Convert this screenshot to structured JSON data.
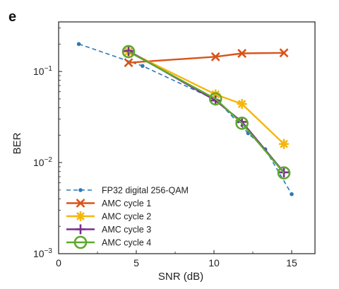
{
  "panel_label": "e",
  "chart_data": {
    "type": "line",
    "xlabel": "SNR (dB)",
    "ylabel": "BER",
    "xlim": [
      0,
      16.5
    ],
    "ylim": [
      0.001,
      0.35
    ],
    "yscale": "log",
    "x_ticks": [
      0,
      5,
      10,
      15
    ],
    "x_tick_labels": [
      "0",
      "5",
      "10",
      "15"
    ],
    "y_ticks": [
      0.001,
      0.01,
      0.1
    ],
    "y_tick_labels": [
      {
        "base": "10",
        "exp": "−3"
      },
      {
        "base": "10",
        "exp": "−2"
      },
      {
        "base": "10",
        "exp": "−1"
      }
    ],
    "grid": false,
    "legend_placement": "bottom-left",
    "series": [
      {
        "name": "FP32 digital 256-QAM",
        "color": "#2a7ab9",
        "line_style": "dashed",
        "marker": "dot",
        "x": [
          1.3,
          5.4,
          10.2,
          12.2,
          13.3,
          15.0
        ],
        "y": [
          0.2,
          0.115,
          0.048,
          0.021,
          0.014,
          0.0045
        ]
      },
      {
        "name": "AMC cycle 1",
        "color": "#d95319",
        "line_style": "solid",
        "marker": "x",
        "x": [
          4.5,
          10.1,
          11.8,
          14.5
        ],
        "y": [
          0.125,
          0.145,
          0.158,
          0.16
        ]
      },
      {
        "name": "AMC cycle 2",
        "color": "#f5b60c",
        "line_style": "solid",
        "marker": "asterisk",
        "x": [
          4.5,
          10.1,
          11.8,
          14.5
        ],
        "y": [
          0.165,
          0.056,
          0.044,
          0.016
        ]
      },
      {
        "name": "AMC cycle 3",
        "color": "#7b2d8e",
        "line_style": "solid",
        "marker": "plus",
        "x": [
          4.5,
          10.1,
          11.8,
          14.5
        ],
        "y": [
          0.168,
          0.048,
          0.028,
          0.0078
        ]
      },
      {
        "name": "AMC cycle 4",
        "color": "#5ea82e",
        "line_style": "solid",
        "marker": "circle",
        "x": [
          4.5,
          10.1,
          11.8,
          14.5
        ],
        "y": [
          0.165,
          0.05,
          0.027,
          0.0077
        ]
      }
    ]
  }
}
